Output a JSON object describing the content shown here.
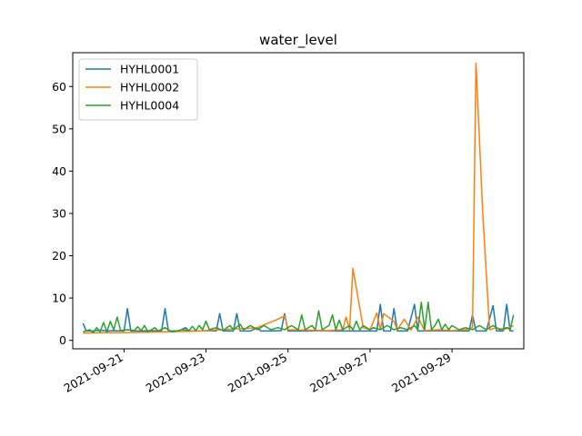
{
  "chart_data": {
    "type": "line",
    "title": "water_level",
    "xlabel": "",
    "ylabel": "",
    "xlim": [
      "2021-09-19T18:00",
      "2021-09-30T18:00"
    ],
    "ylim": [
      -2,
      68
    ],
    "grid": false,
    "legend_position": "top-left",
    "x_ticks": [
      "2021-09-21",
      "2021-09-23",
      "2021-09-25",
      "2021-09-27",
      "2021-09-29"
    ],
    "y_ticks": [
      0,
      10,
      20,
      30,
      40,
      50,
      60
    ],
    "series": [
      {
        "name": "HYHL0001",
        "color": "#1f77b4",
        "points": [
          [
            "2021-09-20T00:00",
            4.0
          ],
          [
            "2021-09-20T02:00",
            2.2
          ],
          [
            "2021-09-20T06:00",
            2.2
          ],
          [
            "2021-09-20T10:00",
            2.4
          ],
          [
            "2021-09-20T14:00",
            2.2
          ],
          [
            "2021-09-20T18:00",
            2.3
          ],
          [
            "2021-09-21T00:00",
            2.2
          ],
          [
            "2021-09-21T02:00",
            7.5
          ],
          [
            "2021-09-21T04:00",
            2.2
          ],
          [
            "2021-09-21T10:00",
            2.2
          ],
          [
            "2021-09-21T16:00",
            2.3
          ],
          [
            "2021-09-21T22:00",
            2.2
          ],
          [
            "2021-09-22T00:00",
            7.5
          ],
          [
            "2021-09-22T02:00",
            2.2
          ],
          [
            "2021-09-22T08:00",
            2.2
          ],
          [
            "2021-09-22T12:00",
            3.0
          ],
          [
            "2021-09-22T14:00",
            2.2
          ],
          [
            "2021-09-22T20:00",
            2.2
          ],
          [
            "2021-09-23T02:00",
            2.3
          ],
          [
            "2021-09-23T06:00",
            2.2
          ],
          [
            "2021-09-23T08:00",
            6.3
          ],
          [
            "2021-09-23T10:00",
            2.2
          ],
          [
            "2021-09-23T16:00",
            2.2
          ],
          [
            "2021-09-23T18:00",
            6.3
          ],
          [
            "2021-09-23T20:00",
            2.2
          ],
          [
            "2021-09-24T02:00",
            2.2
          ],
          [
            "2021-09-24T06:00",
            3.0
          ],
          [
            "2021-09-24T08:00",
            2.2
          ],
          [
            "2021-09-24T14:00",
            2.2
          ],
          [
            "2021-09-24T20:00",
            2.3
          ],
          [
            "2021-09-24T22:00",
            6.3
          ],
          [
            "2021-09-25T00:00",
            2.2
          ],
          [
            "2021-09-25T06:00",
            2.2
          ],
          [
            "2021-09-25T12:00",
            2.2
          ],
          [
            "2021-09-25T18:00",
            2.3
          ],
          [
            "2021-09-26T00:00",
            2.2
          ],
          [
            "2021-09-26T06:00",
            2.2
          ],
          [
            "2021-09-26T12:00",
            2.2
          ],
          [
            "2021-09-26T18:00",
            2.2
          ],
          [
            "2021-09-27T00:00",
            2.2
          ],
          [
            "2021-09-27T04:00",
            2.2
          ],
          [
            "2021-09-27T06:00",
            8.5
          ],
          [
            "2021-09-27T08:00",
            2.2
          ],
          [
            "2021-09-27T12:00",
            2.2
          ],
          [
            "2021-09-27T14:00",
            7.5
          ],
          [
            "2021-09-27T16:00",
            2.2
          ],
          [
            "2021-09-27T22:00",
            2.2
          ],
          [
            "2021-09-28T02:00",
            8.5
          ],
          [
            "2021-09-28T04:00",
            2.2
          ],
          [
            "2021-09-28T10:00",
            2.2
          ],
          [
            "2021-09-28T16:00",
            2.3
          ],
          [
            "2021-09-28T22:00",
            2.2
          ],
          [
            "2021-09-29T04:00",
            2.2
          ],
          [
            "2021-09-29T10:00",
            2.2
          ],
          [
            "2021-09-29T12:00",
            6.0
          ],
          [
            "2021-09-29T14:00",
            2.2
          ],
          [
            "2021-09-29T20:00",
            2.2
          ],
          [
            "2021-09-30T00:00",
            8.2
          ],
          [
            "2021-09-30T02:00",
            2.2
          ],
          [
            "2021-09-30T06:00",
            2.2
          ],
          [
            "2021-09-30T08:00",
            8.5
          ],
          [
            "2021-09-30T10:00",
            2.2
          ],
          [
            "2021-09-30T12:00",
            2.2
          ]
        ]
      },
      {
        "name": "HYHL0002",
        "color": "#ff7f0e",
        "points": [
          [
            "2021-09-20T00:00",
            1.7
          ],
          [
            "2021-09-20T12:00",
            1.8
          ],
          [
            "2021-09-21T00:00",
            1.8
          ],
          [
            "2021-09-21T12:00",
            1.9
          ],
          [
            "2021-09-22T00:00",
            2.0
          ],
          [
            "2021-09-22T12:00",
            2.1
          ],
          [
            "2021-09-23T00:00",
            2.3
          ],
          [
            "2021-09-23T12:00",
            2.6
          ],
          [
            "2021-09-24T00:00",
            2.8
          ],
          [
            "2021-09-24T06:00",
            3.0
          ],
          [
            "2021-09-24T12:00",
            4.0
          ],
          [
            "2021-09-24T18:00",
            5.0
          ],
          [
            "2021-09-24T22:00",
            5.8
          ],
          [
            "2021-09-25T00:00",
            2.5
          ],
          [
            "2021-09-25T12:00",
            2.4
          ],
          [
            "2021-09-26T00:00",
            2.3
          ],
          [
            "2021-09-26T08:00",
            2.5
          ],
          [
            "2021-09-26T10:00",
            5.5
          ],
          [
            "2021-09-26T12:00",
            2.5
          ],
          [
            "2021-09-26T14:00",
            17.0
          ],
          [
            "2021-09-26T20:00",
            3.0
          ],
          [
            "2021-09-27T00:00",
            2.5
          ],
          [
            "2021-09-27T04:00",
            6.5
          ],
          [
            "2021-09-27T06:00",
            2.5
          ],
          [
            "2021-09-27T08:00",
            6.3
          ],
          [
            "2021-09-27T14:00",
            4.5
          ],
          [
            "2021-09-27T16:00",
            2.5
          ],
          [
            "2021-09-27T20:00",
            5.0
          ],
          [
            "2021-09-28T00:00",
            2.4
          ],
          [
            "2021-09-28T04:00",
            5.5
          ],
          [
            "2021-09-28T08:00",
            2.3
          ],
          [
            "2021-09-28T16:00",
            2.5
          ],
          [
            "2021-09-29T00:00",
            2.3
          ],
          [
            "2021-09-29T08:00",
            2.5
          ],
          [
            "2021-09-29T12:00",
            3.0
          ],
          [
            "2021-09-29T14:00",
            65.5
          ],
          [
            "2021-09-29T18:00",
            30.0
          ],
          [
            "2021-09-29T22:00",
            2.5
          ],
          [
            "2021-09-30T02:00",
            3.0
          ],
          [
            "2021-09-30T06:00",
            2.5
          ],
          [
            "2021-09-30T08:00",
            2.8
          ],
          [
            "2021-09-30T12:00",
            3.5
          ]
        ]
      },
      {
        "name": "HYHL0004",
        "color": "#2ca02c",
        "points": [
          [
            "2021-09-20T00:00",
            2.0
          ],
          [
            "2021-09-20T04:00",
            2.5
          ],
          [
            "2021-09-20T06:00",
            1.8
          ],
          [
            "2021-09-20T08:00",
            3.0
          ],
          [
            "2021-09-20T10:00",
            2.0
          ],
          [
            "2021-09-20T12:00",
            4.2
          ],
          [
            "2021-09-20T14:00",
            2.0
          ],
          [
            "2021-09-20T16:00",
            4.5
          ],
          [
            "2021-09-20T18:00",
            2.5
          ],
          [
            "2021-09-20T20:00",
            5.5
          ],
          [
            "2021-09-20T22:00",
            2.3
          ],
          [
            "2021-09-21T02:00",
            2.5
          ],
          [
            "2021-09-21T06:00",
            2.3
          ],
          [
            "2021-09-21T08:00",
            3.2
          ],
          [
            "2021-09-21T10:00",
            2.3
          ],
          [
            "2021-09-21T12:00",
            3.5
          ],
          [
            "2021-09-21T14:00",
            2.0
          ],
          [
            "2021-09-21T18:00",
            3.0
          ],
          [
            "2021-09-21T20:00",
            2.2
          ],
          [
            "2021-09-22T00:00",
            3.0
          ],
          [
            "2021-09-22T04:00",
            2.0
          ],
          [
            "2021-09-22T10:00",
            2.5
          ],
          [
            "2021-09-22T14:00",
            2.3
          ],
          [
            "2021-09-22T16:00",
            3.3
          ],
          [
            "2021-09-22T18:00",
            2.3
          ],
          [
            "2021-09-22T20:00",
            3.5
          ],
          [
            "2021-09-22T22:00",
            2.5
          ],
          [
            "2021-09-23T00:00",
            4.5
          ],
          [
            "2021-09-23T02:00",
            2.5
          ],
          [
            "2021-09-23T06:00",
            3.0
          ],
          [
            "2021-09-23T10:00",
            2.3
          ],
          [
            "2021-09-23T14:00",
            3.5
          ],
          [
            "2021-09-23T16:00",
            2.5
          ],
          [
            "2021-09-23T20:00",
            3.8
          ],
          [
            "2021-09-23T22:00",
            2.5
          ],
          [
            "2021-09-24T02:00",
            3.5
          ],
          [
            "2021-09-24T06:00",
            2.5
          ],
          [
            "2021-09-24T10:00",
            3.5
          ],
          [
            "2021-09-24T14:00",
            2.5
          ],
          [
            "2021-09-24T18:00",
            3.0
          ],
          [
            "2021-09-24T22:00",
            2.5
          ],
          [
            "2021-09-25T02:00",
            3.5
          ],
          [
            "2021-09-25T06:00",
            2.5
          ],
          [
            "2021-09-25T08:00",
            6.0
          ],
          [
            "2021-09-25T10:00",
            2.5
          ],
          [
            "2021-09-25T14:00",
            3.5
          ],
          [
            "2021-09-25T16:00",
            2.5
          ],
          [
            "2021-09-25T18:00",
            7.0
          ],
          [
            "2021-09-25T20:00",
            2.5
          ],
          [
            "2021-09-26T00:00",
            3.5
          ],
          [
            "2021-09-26T02:00",
            6.0
          ],
          [
            "2021-09-26T04:00",
            2.5
          ],
          [
            "2021-09-26T06:00",
            4.8
          ],
          [
            "2021-09-26T08:00",
            2.5
          ],
          [
            "2021-09-26T12:00",
            3.5
          ],
          [
            "2021-09-26T14:00",
            2.5
          ],
          [
            "2021-09-26T16:00",
            4.5
          ],
          [
            "2021-09-26T18:00",
            2.5
          ],
          [
            "2021-09-26T20:00",
            3.5
          ],
          [
            "2021-09-27T00:00",
            2.5
          ],
          [
            "2021-09-27T02:00",
            3.0
          ],
          [
            "2021-09-27T06:00",
            2.5
          ],
          [
            "2021-09-27T10:00",
            3.5
          ],
          [
            "2021-09-27T14:00",
            2.5
          ],
          [
            "2021-09-27T18:00",
            3.0
          ],
          [
            "2021-09-27T22:00",
            2.5
          ],
          [
            "2021-09-28T02:00",
            3.5
          ],
          [
            "2021-09-28T04:00",
            2.5
          ],
          [
            "2021-09-28T06:00",
            9.0
          ],
          [
            "2021-09-28T08:00",
            2.5
          ],
          [
            "2021-09-28T10:00",
            9.0
          ],
          [
            "2021-09-28T12:00",
            2.5
          ],
          [
            "2021-09-28T14:00",
            3.5
          ],
          [
            "2021-09-28T16:00",
            5.0
          ],
          [
            "2021-09-28T18:00",
            2.5
          ],
          [
            "2021-09-28T20:00",
            3.8
          ],
          [
            "2021-09-28T22:00",
            2.5
          ],
          [
            "2021-09-29T00:00",
            3.5
          ],
          [
            "2021-09-29T04:00",
            2.5
          ],
          [
            "2021-09-29T08:00",
            3.0
          ],
          [
            "2021-09-29T12:00",
            2.5
          ],
          [
            "2021-09-29T16:00",
            3.5
          ],
          [
            "2021-09-29T20:00",
            2.5
          ],
          [
            "2021-09-30T00:00",
            3.5
          ],
          [
            "2021-09-30T04:00",
            2.5
          ],
          [
            "2021-09-30T08:00",
            3.0
          ],
          [
            "2021-09-30T10:00",
            2.5
          ],
          [
            "2021-09-30T12:00",
            6.0
          ]
        ]
      }
    ]
  }
}
